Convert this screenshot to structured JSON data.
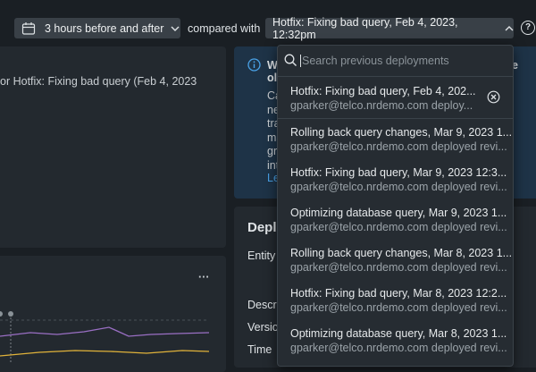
{
  "toolbar": {
    "time_range": "3 hours before and after",
    "compared_with": "compared with",
    "selected_deployment": "Hotfix: Fixing bad query, Feb 4, 2023, 12:32pm",
    "help": "?"
  },
  "left_panel": {
    "text": "or Hotfix: Fixing bad query (Feb 4, 2023",
    "menu": "···"
  },
  "info_panel": {
    "title_lines": [
      "W",
      "ol"
    ],
    "title_right": "e",
    "body_lines": [
      "Ca",
      "ne",
      "tra",
      "ma",
      "gr",
      "int"
    ],
    "link": "Le"
  },
  "deployment_panel": {
    "title": "Depl",
    "fields": [
      "Entity",
      "Descri",
      "Versio",
      "Time"
    ]
  },
  "dropdown": {
    "search_placeholder": "Search previous deployments",
    "items": [
      {
        "title": "Hotfix: Fixing bad query, Feb 4, 202...",
        "subtitle": "gparker@telco.nrdemo.com deploy..."
      },
      {
        "title": "Rolling back query changes, Mar 9, 2023 1...",
        "subtitle": "gparker@telco.nrdemo.com deployed revi..."
      },
      {
        "title": "Hotfix: Fixing bad query, Mar 9, 2023 12:3...",
        "subtitle": "gparker@telco.nrdemo.com deployed revi..."
      },
      {
        "title": "Optimizing database query, Mar 9, 2023 1...",
        "subtitle": "gparker@telco.nrdemo.com deployed revi..."
      },
      {
        "title": "Rolling back query changes, Mar 8, 2023 1...",
        "subtitle": "gparker@telco.nrdemo.com deployed revi..."
      },
      {
        "title": "Hotfix: Fixing bad query, Mar 8, 2023 12:2...",
        "subtitle": "gparker@telco.nrdemo.com deployed revi..."
      },
      {
        "title": "Optimizing database query, Mar 8, 2023 1...",
        "subtitle": "gparker@telco.nrdemo.com deployed revi..."
      }
    ]
  }
}
